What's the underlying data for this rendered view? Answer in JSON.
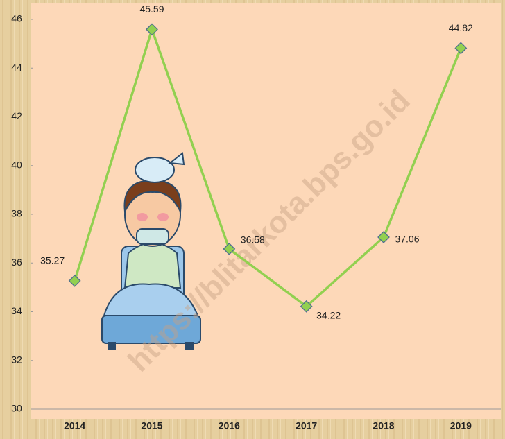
{
  "chart_data": {
    "type": "line",
    "categories": [
      "2014",
      "2015",
      "2016",
      "2017",
      "2018",
      "2019"
    ],
    "values": [
      35.27,
      45.59,
      36.58,
      34.22,
      37.06,
      44.82
    ],
    "color": "#92d050",
    "marker_color": "#92d050",
    "ylim": [
      30,
      46
    ],
    "yticks": [
      30,
      32,
      34,
      36,
      38,
      40,
      42,
      44,
      46
    ],
    "grid": false,
    "watermark": "https://blitarkota.bps.go.id"
  }
}
